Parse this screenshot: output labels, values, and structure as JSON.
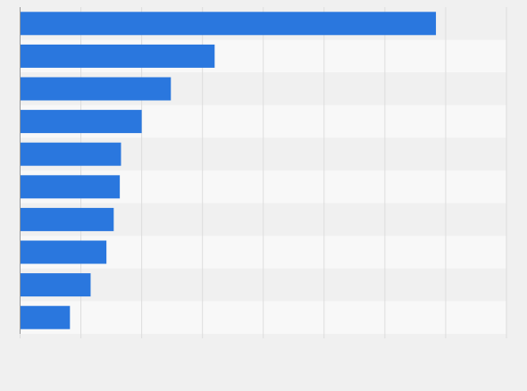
{
  "chart_data": {
    "type": "bar",
    "orientation": "horizontal",
    "categories": [
      "",
      "",
      "",
      "",
      "",
      "",
      "",
      "",
      "",
      ""
    ],
    "values": [
      34.2,
      16.0,
      12.4,
      10.0,
      8.3,
      8.2,
      7.7,
      7.1,
      5.8,
      4.1
    ],
    "title": "",
    "xlabel": "",
    "ylabel": "",
    "xlim": [
      0,
      40
    ],
    "gridlines_x": [
      0,
      5,
      10,
      15,
      20,
      25,
      30,
      35,
      40
    ],
    "grid": true,
    "legend": "none"
  },
  "colors": {
    "bar": "#2a77de",
    "page_background": "#f0f0f0",
    "band_light": "#f8f8f8",
    "band_dark": "#f0f0f0",
    "gridline": "#dddddd",
    "axis": "#999999"
  }
}
